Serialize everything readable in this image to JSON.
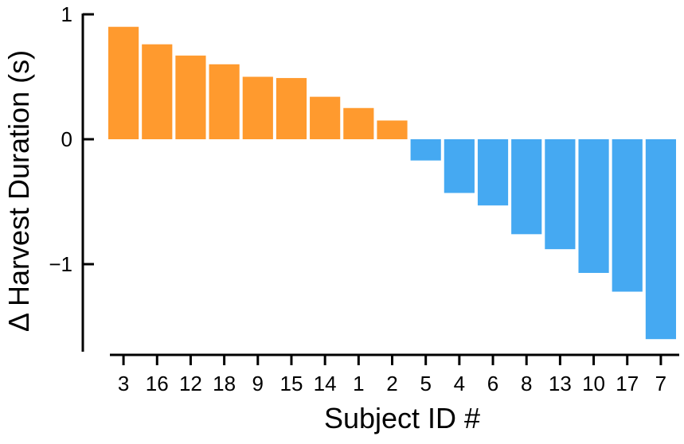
{
  "chart_data": {
    "type": "bar",
    "xlabel": "Subject ID #",
    "ylabel": "Δ Harvest Duration (s)",
    "categories": [
      "3",
      "16",
      "12",
      "18",
      "9",
      "15",
      "14",
      "1",
      "2",
      "5",
      "4",
      "6",
      "8",
      "13",
      "10",
      "17",
      "7"
    ],
    "values": [
      0.9,
      0.76,
      0.67,
      0.6,
      0.5,
      0.49,
      0.34,
      0.25,
      0.15,
      -0.17,
      -0.43,
      -0.53,
      -0.76,
      -0.88,
      -1.07,
      -1.22,
      -1.6
    ],
    "ylim": [
      -1.72,
      1.0
    ],
    "yticks": [
      1,
      0,
      -1
    ],
    "ytick_labels": [
      "1",
      "0",
      "−1"
    ],
    "colors": {
      "positive": "#FF9A2E",
      "negative": "#45A9F2"
    },
    "grid": false,
    "legend": "none"
  }
}
